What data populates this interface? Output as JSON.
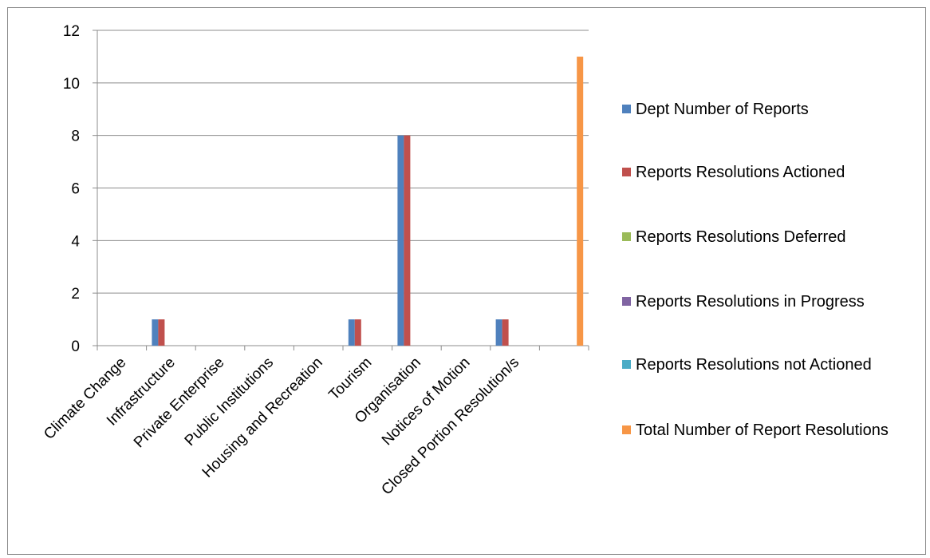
{
  "chart_data": {
    "type": "bar",
    "title": "",
    "xlabel": "",
    "ylabel": "",
    "ylim": [
      0,
      12
    ],
    "yticks": [
      0,
      2,
      4,
      6,
      8,
      10,
      12
    ],
    "grid": true,
    "legend_position": "right",
    "categories": [
      "Climate Change",
      "Infrastructure",
      "Private Enterprise",
      "Public Institutions",
      "Housing and Recreation",
      "Tourism",
      "Organisation",
      "Notices of Motion",
      "Closed Portion Resolution/s",
      ""
    ],
    "series": [
      {
        "name": "Dept Number of Reports",
        "color": "#4F81BD",
        "values": [
          0,
          1,
          0,
          0,
          0,
          1,
          8,
          0,
          1,
          0
        ]
      },
      {
        "name": "Reports Resolutions Actioned",
        "color": "#C0504D",
        "values": [
          0,
          1,
          0,
          0,
          0,
          1,
          8,
          0,
          1,
          0
        ]
      },
      {
        "name": "Reports Resolutions Deferred",
        "color": "#9BBB59",
        "values": [
          0,
          0,
          0,
          0,
          0,
          0,
          0,
          0,
          0,
          0
        ]
      },
      {
        "name": "Reports Resolutions in Progress",
        "color": "#8064A2",
        "values": [
          0,
          0,
          0,
          0,
          0,
          0,
          0,
          0,
          0,
          0
        ]
      },
      {
        "name": "Reports Resolutions not Actioned",
        "color": "#4BACC6",
        "values": [
          0,
          0,
          0,
          0,
          0,
          0,
          0,
          0,
          0,
          0
        ]
      },
      {
        "name": "Total Number of Report Resolutions",
        "color": "#F79646",
        "values": [
          0,
          0,
          0,
          0,
          0,
          0,
          0,
          0,
          0,
          11
        ]
      }
    ]
  }
}
